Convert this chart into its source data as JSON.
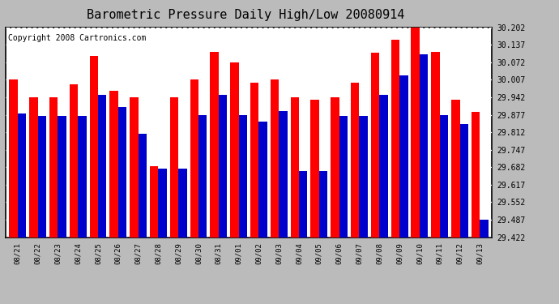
{
  "title": "Barometric Pressure Daily High/Low 20080914",
  "copyright": "Copyright 2008 Cartronics.com",
  "dates": [
    "08/21",
    "08/22",
    "08/23",
    "08/24",
    "08/25",
    "08/26",
    "08/27",
    "08/28",
    "08/29",
    "08/30",
    "08/31",
    "09/01",
    "09/02",
    "09/03",
    "09/04",
    "09/05",
    "09/06",
    "09/07",
    "09/08",
    "09/09",
    "09/10",
    "09/11",
    "09/12",
    "09/13"
  ],
  "highs": [
    30.007,
    29.942,
    29.942,
    29.99,
    30.097,
    29.967,
    29.942,
    29.687,
    29.942,
    30.007,
    30.112,
    30.072,
    29.997,
    30.007,
    29.942,
    29.932,
    29.942,
    29.997,
    30.107,
    30.157,
    30.217,
    30.112,
    29.932,
    29.887
  ],
  "lows": [
    29.882,
    29.872,
    29.872,
    29.872,
    29.952,
    29.907,
    29.807,
    29.677,
    29.677,
    29.877,
    29.952,
    29.877,
    29.852,
    29.892,
    29.667,
    29.667,
    29.872,
    29.872,
    29.952,
    30.022,
    30.102,
    29.877,
    29.842,
    29.487
  ],
  "ymin": 29.422,
  "ymax": 30.202,
  "yticks": [
    29.422,
    29.487,
    29.552,
    29.617,
    29.682,
    29.747,
    29.812,
    29.877,
    29.942,
    30.007,
    30.072,
    30.137,
    30.202
  ],
  "high_color": "#FF0000",
  "low_color": "#0000CC",
  "bg_color": "#BBBBBB",
  "plot_bg_color": "#FFFFFF",
  "grid_color": "#AAAAAA",
  "title_fontsize": 11,
  "copyright_fontsize": 7,
  "bar_width": 0.42
}
